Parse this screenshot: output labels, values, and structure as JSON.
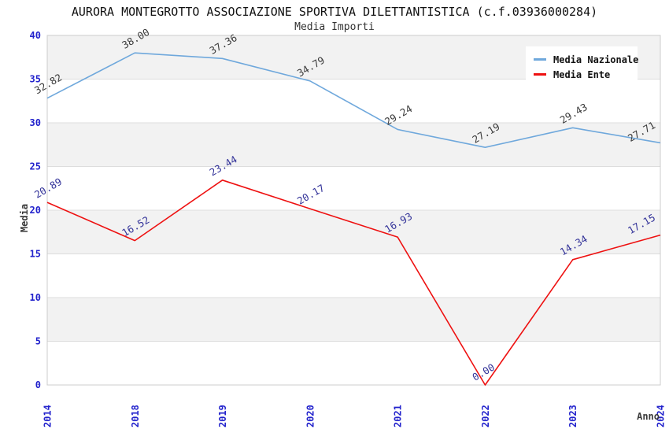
{
  "title": "AURORA MONTEGROTTO ASSOCIAZIONE SPORTIVA DILETTANTISTICA (c.f.03936000284)",
  "subtitle": "Media Importi",
  "chart_data": {
    "type": "line",
    "categories": [
      "2014",
      "2018",
      "2019",
      "2020",
      "2021",
      "2022",
      "2023",
      "2024"
    ],
    "series": [
      {
        "name": "Media Nazionale",
        "color": "#6FA8DC",
        "label_color": "#3a3a3a",
        "values": [
          32.82,
          38.0,
          37.36,
          34.79,
          29.24,
          27.19,
          29.43,
          27.71
        ]
      },
      {
        "name": "Media Ente",
        "color": "#EE1111",
        "label_color": "#333399",
        "values": [
          20.89,
          16.52,
          23.44,
          20.17,
          16.93,
          0.0,
          14.34,
          17.15
        ]
      }
    ],
    "xlabel": "Anno",
    "ylabel": "Media",
    "ylim": [
      0,
      40
    ],
    "y_ticks": [
      0,
      5,
      10,
      15,
      20,
      25,
      30,
      35,
      40
    ],
    "legend_position": "top-right",
    "grid": "horizontal-bands",
    "band_colors": [
      "#F2F2F2",
      "#FFFFFF"
    ]
  },
  "colors": {
    "tick_label": "#2222CC",
    "axis_title": "#3a3a3a",
    "gridline": "#DDDDDD",
    "plot_border": "#CCCCCC",
    "title_text": "#111111"
  }
}
